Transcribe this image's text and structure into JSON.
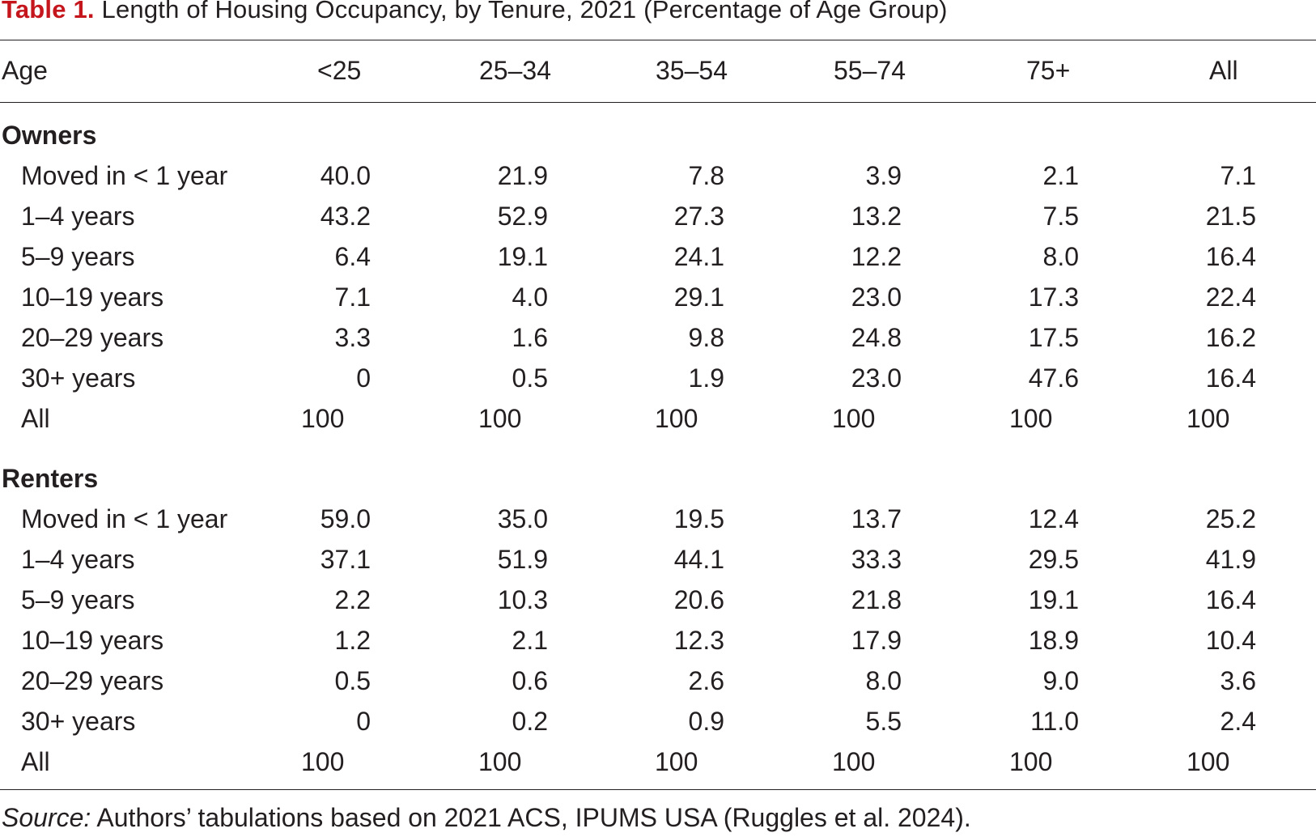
{
  "title": {
    "label": "Table 1.",
    "text": " Length of Housing Occupancy, by Tenure, 2021 (Percentage of Age Group)"
  },
  "header": {
    "row_label": "Age",
    "columns": [
      "<25",
      "25–34",
      "35–54",
      "55–74",
      "75+",
      "All"
    ]
  },
  "sections": [
    {
      "name": "Owners",
      "rows": [
        {
          "label": "Moved in < 1 year",
          "values": [
            "40.0",
            "21.9",
            "7.8",
            "3.9",
            "2.1",
            "7.1"
          ]
        },
        {
          "label": "1–4 years",
          "values": [
            "43.2",
            "52.9",
            "27.3",
            "13.2",
            "7.5",
            "21.5"
          ]
        },
        {
          "label": "5–9 years",
          "values": [
            "6.4",
            "19.1",
            "24.1",
            "12.2",
            "8.0",
            "16.4"
          ]
        },
        {
          "label": "10–19 years",
          "values": [
            "7.1",
            "4.0",
            "29.1",
            "23.0",
            "17.3",
            "22.4"
          ]
        },
        {
          "label": "20–29 years",
          "values": [
            "3.3",
            "1.6",
            "9.8",
            "24.8",
            "17.5",
            "16.2"
          ]
        },
        {
          "label": "30+ years",
          "values": [
            "0",
            "0.5",
            "1.9",
            "23.0",
            "47.6",
            "16.4"
          ]
        }
      ],
      "total": {
        "label": "All",
        "values": [
          "100",
          "100",
          "100",
          "100",
          "100",
          "100"
        ]
      }
    },
    {
      "name": "Renters",
      "rows": [
        {
          "label": "Moved in < 1 year",
          "values": [
            "59.0",
            "35.0",
            "19.5",
            "13.7",
            "12.4",
            "25.2"
          ]
        },
        {
          "label": "1–4 years",
          "values": [
            "37.1",
            "51.9",
            "44.1",
            "33.3",
            "29.5",
            "41.9"
          ]
        },
        {
          "label": "5–9 years",
          "values": [
            "2.2",
            "10.3",
            "20.6",
            "21.8",
            "19.1",
            "16.4"
          ]
        },
        {
          "label": "10–19 years",
          "values": [
            "1.2",
            "2.1",
            "12.3",
            "17.9",
            "18.9",
            "10.4"
          ]
        },
        {
          "label": "20–29 years",
          "values": [
            "0.5",
            "0.6",
            "2.6",
            "8.0",
            "9.0",
            "3.6"
          ]
        },
        {
          "label": "30+ years",
          "values": [
            "0",
            "0.2",
            "0.9",
            "5.5",
            "11.0",
            "2.4"
          ]
        }
      ],
      "total": {
        "label": "All",
        "values": [
          "100",
          "100",
          "100",
          "100",
          "100",
          "100"
        ]
      }
    }
  ],
  "source": {
    "label": "Source:",
    "text": " Authors’ tabulations based on 2021 ACS, IPUMS USA (Ruggles et al. 2024)."
  },
  "colors": {
    "title_label": "#c4161c",
    "text": "#231f20"
  }
}
